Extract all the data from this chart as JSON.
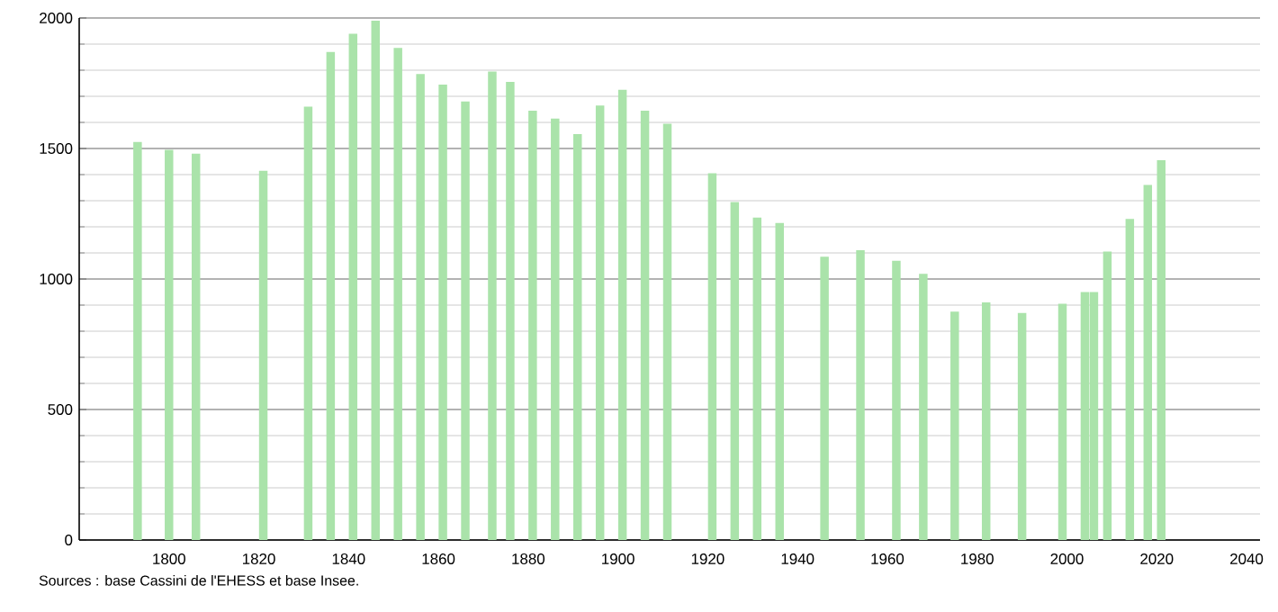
{
  "chart_data": {
    "type": "bar",
    "x": [
      1793,
      1800,
      1806,
      1821,
      1831,
      1836,
      1841,
      1846,
      1851,
      1856,
      1861,
      1866,
      1872,
      1876,
      1881,
      1886,
      1891,
      1896,
      1901,
      1906,
      1911,
      1921,
      1926,
      1931,
      1936,
      1946,
      1954,
      1962,
      1968,
      1975,
      1982,
      1990,
      1999,
      2004,
      2006,
      2009,
      2014,
      2018,
      2021
    ],
    "values": [
      1525,
      1495,
      1480,
      1415,
      1660,
      1870,
      1940,
      1990,
      1885,
      1785,
      1745,
      1680,
      1795,
      1755,
      1645,
      1615,
      1555,
      1665,
      1725,
      1645,
      1595,
      1405,
      1295,
      1235,
      1215,
      1085,
      1110,
      1070,
      1020,
      875,
      910,
      870,
      905,
      950,
      950,
      1105,
      1230,
      1360,
      1455
    ],
    "color": "#aae3aa",
    "xlim": [
      1780,
      2043
    ],
    "ylim": [
      0,
      2000
    ],
    "xticks": [
      1800,
      1820,
      1840,
      1860,
      1880,
      1900,
      1920,
      1940,
      1960,
      1980,
      2000,
      2020,
      2040
    ],
    "yticks": [
      0,
      500,
      1000,
      1500,
      2000
    ],
    "grid": "y",
    "annotations": [
      "Sources : base Cassini de l'EHESS et base Insee."
    ]
  }
}
